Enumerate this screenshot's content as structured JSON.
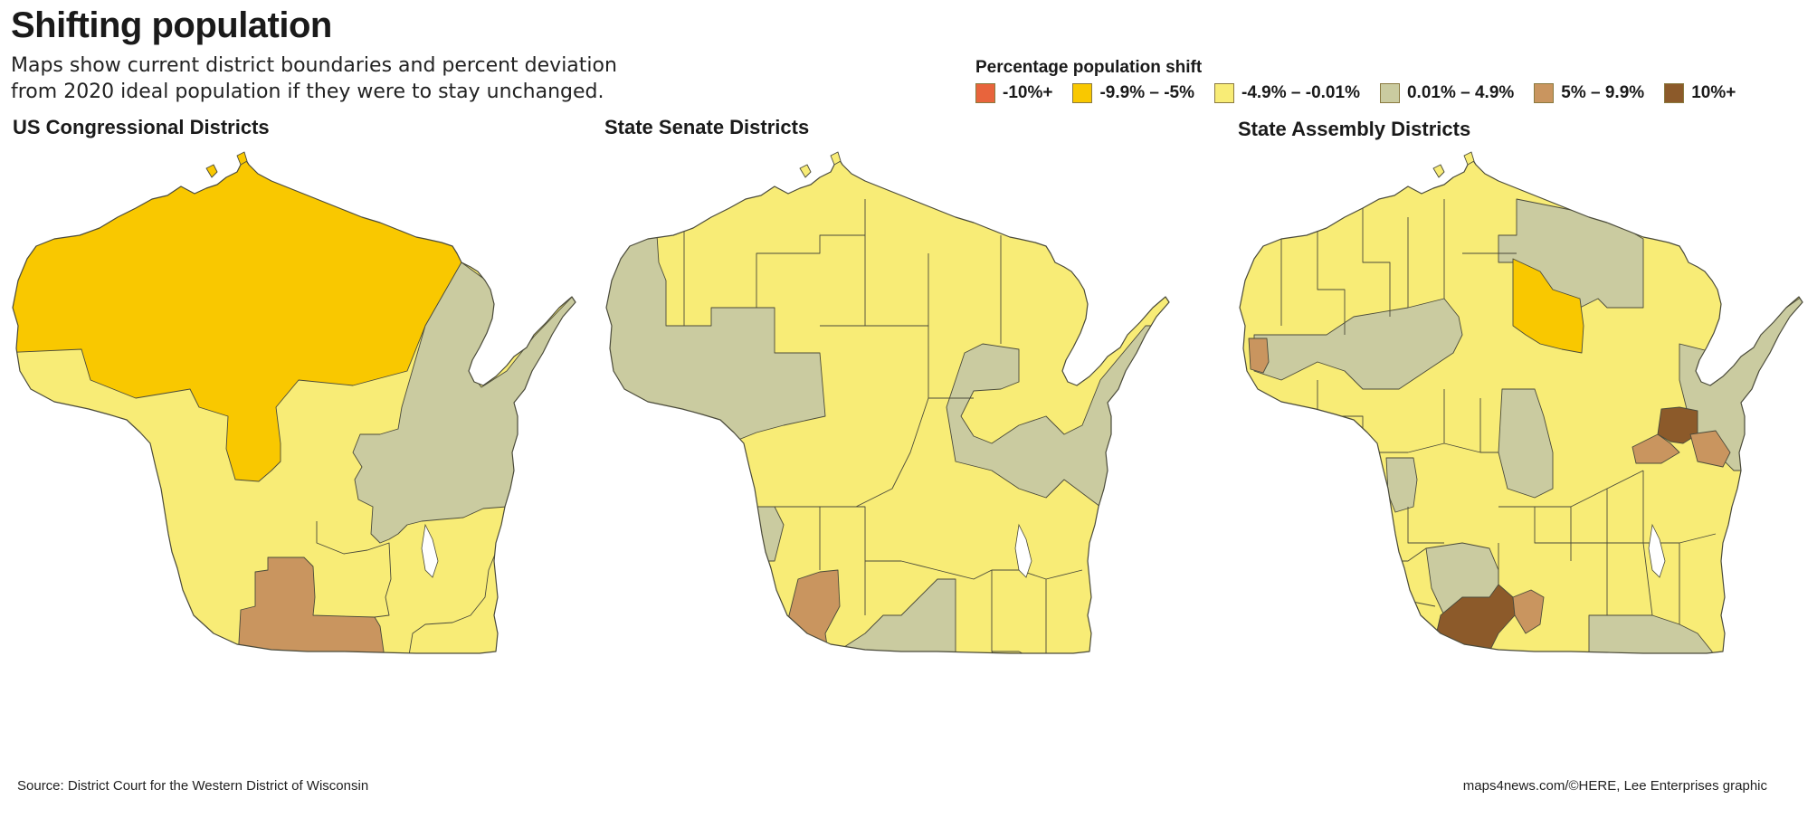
{
  "title": "Shifting population",
  "subtitle": "Maps show current district boundaries and percent deviation from 2020 ideal population if they were to stay unchanged.",
  "legend": {
    "title": "Percentage population shift",
    "items": [
      {
        "label": "-10%+",
        "color": "#E8643C"
      },
      {
        "label": "-9.9% – -5%",
        "color": "#F9C800"
      },
      {
        "label": "-4.9% – -0.01%",
        "color": "#F8EC76"
      },
      {
        "label": "0.01% – 4.9%",
        "color": "#CACBA0"
      },
      {
        "label": "5% – 9.9%",
        "color": "#C9955F"
      },
      {
        "label": "10%+",
        "color": "#8C5A2A"
      }
    ]
  },
  "maps": {
    "congressional": {
      "title": "US Congressional Districts"
    },
    "senate": {
      "title": "State Senate Districts"
    },
    "assembly": {
      "title": "State Assembly Districts"
    }
  },
  "source": "Source: District Court for the Western District of Wisconsin",
  "credit": "maps4news.com/©HERE, Lee Enterprises graphic"
}
